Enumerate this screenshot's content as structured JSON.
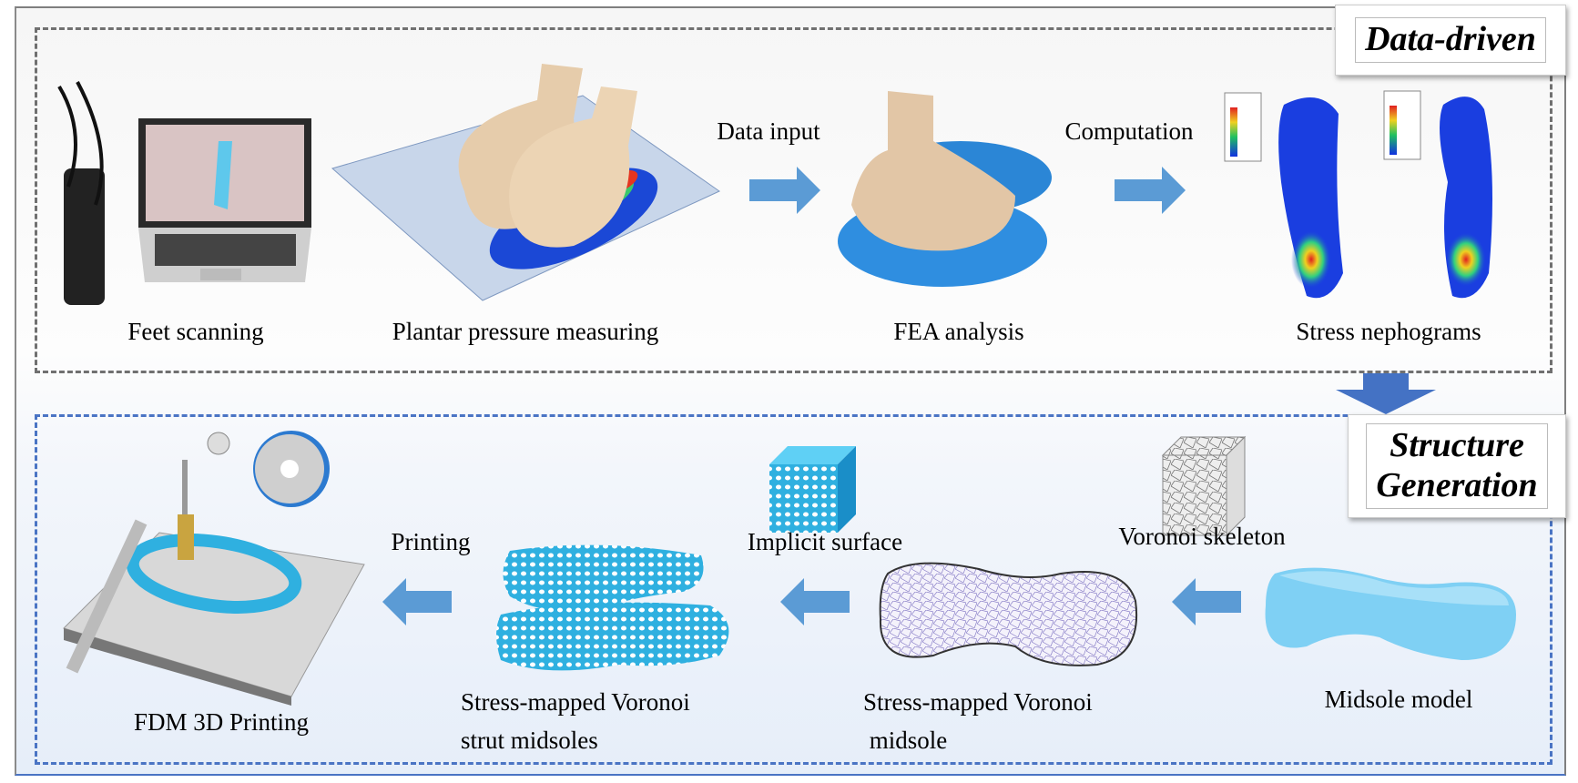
{
  "sections": {
    "data_driven": {
      "title": "Data-driven",
      "steps": [
        "Feet scanning",
        "Plantar pressure measuring",
        "FEA analysis",
        "Stress nephograms"
      ],
      "arrow_labels": [
        "Data input",
        "Computation"
      ]
    },
    "structure_generation": {
      "title_line1": "Structure",
      "title_line2": "Generation",
      "steps": {
        "midsole_model": "Midsole model",
        "voronoi_midsole_1": "Stress-mapped Voronoi",
        "voronoi_midsole_2": " midsole",
        "strut_midsoles_1": "Stress-mapped Voronoi",
        "strut_midsoles_2": "strut midsoles",
        "fdm": "FDM 3D Printing"
      },
      "arrow_labels": [
        "Voronoi skeleton",
        "Implicit surface",
        "Printing"
      ]
    }
  },
  "colors": {
    "arrow": "#5b9bd5",
    "top_border": "#707070",
    "bottom_border": "#4a74c4",
    "lattice": "#2fb0e0"
  }
}
